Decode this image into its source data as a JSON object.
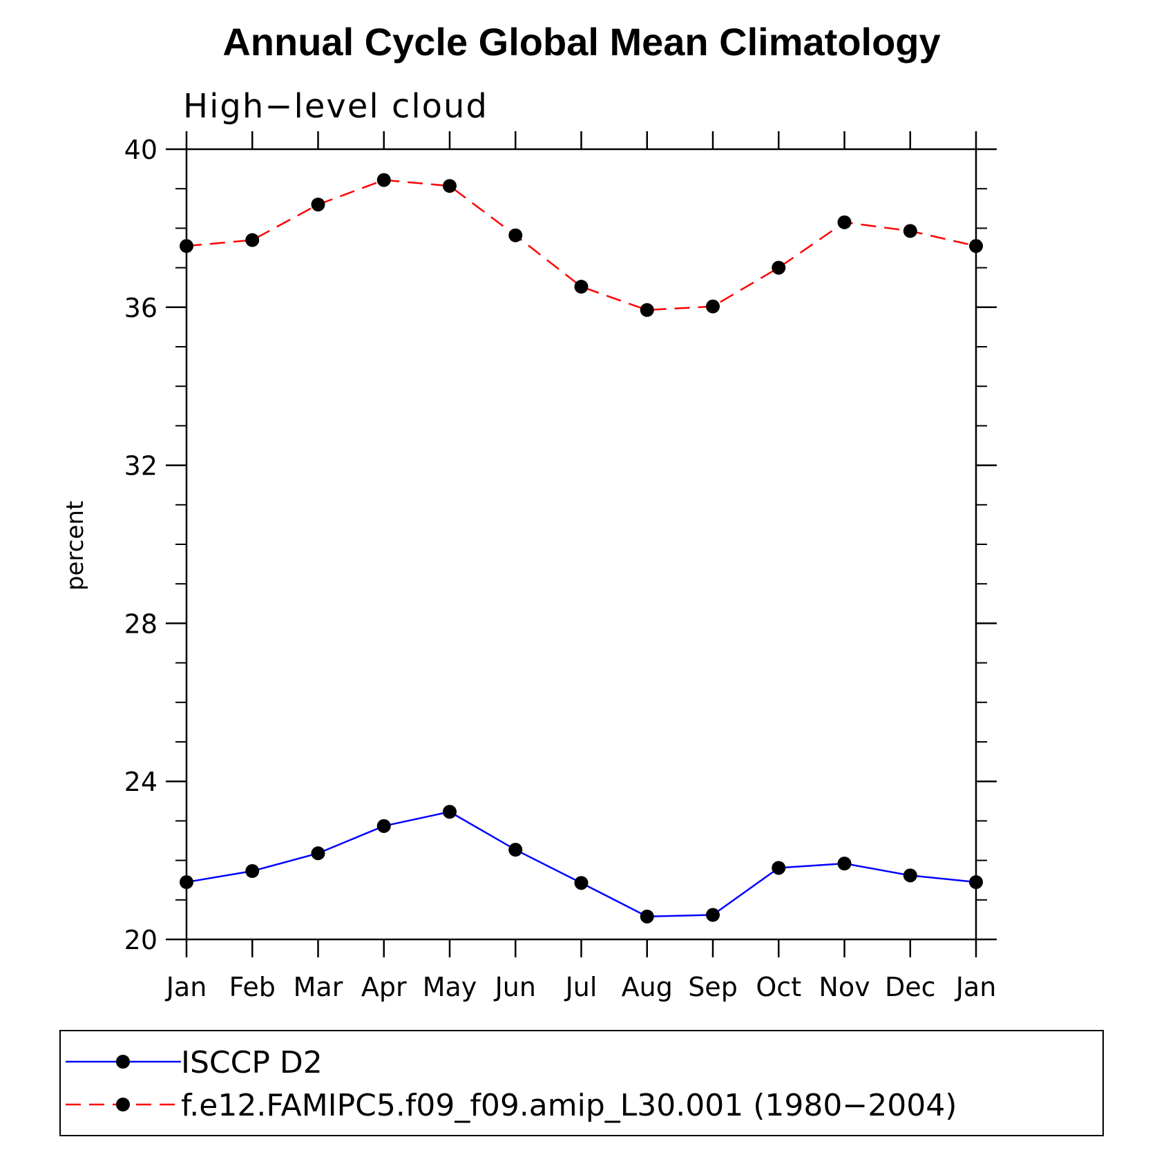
{
  "chart_data": {
    "type": "line",
    "title": "Annual Cycle Global Mean Climatology",
    "subtitle": "High−level cloud",
    "xlabel": "",
    "ylabel": "percent",
    "categories": [
      "Jan",
      "Feb",
      "Mar",
      "Apr",
      "May",
      "Jun",
      "Jul",
      "Aug",
      "Sep",
      "Oct",
      "Nov",
      "Dec",
      "Jan"
    ],
    "ylim": [
      20,
      40
    ],
    "yticks": [
      20,
      24,
      28,
      32,
      36,
      40
    ],
    "grid": false,
    "legend_position": "bottom",
    "series": [
      {
        "name": "ISCCP D2",
        "color": "#0000ff",
        "dash": "solid",
        "values": [
          21.45,
          21.73,
          22.18,
          22.87,
          23.23,
          22.27,
          21.43,
          20.58,
          20.62,
          21.81,
          21.92,
          21.62,
          21.45
        ]
      },
      {
        "name": "f.e12.FAMIPC5.f09_f09.amip_L30.001 (1980−2004)",
        "color": "#ff0000",
        "dash": "dashed",
        "values": [
          37.55,
          37.7,
          38.6,
          39.22,
          39.07,
          37.82,
          36.52,
          35.93,
          36.02,
          37.0,
          38.15,
          37.93,
          37.55
        ]
      }
    ]
  }
}
